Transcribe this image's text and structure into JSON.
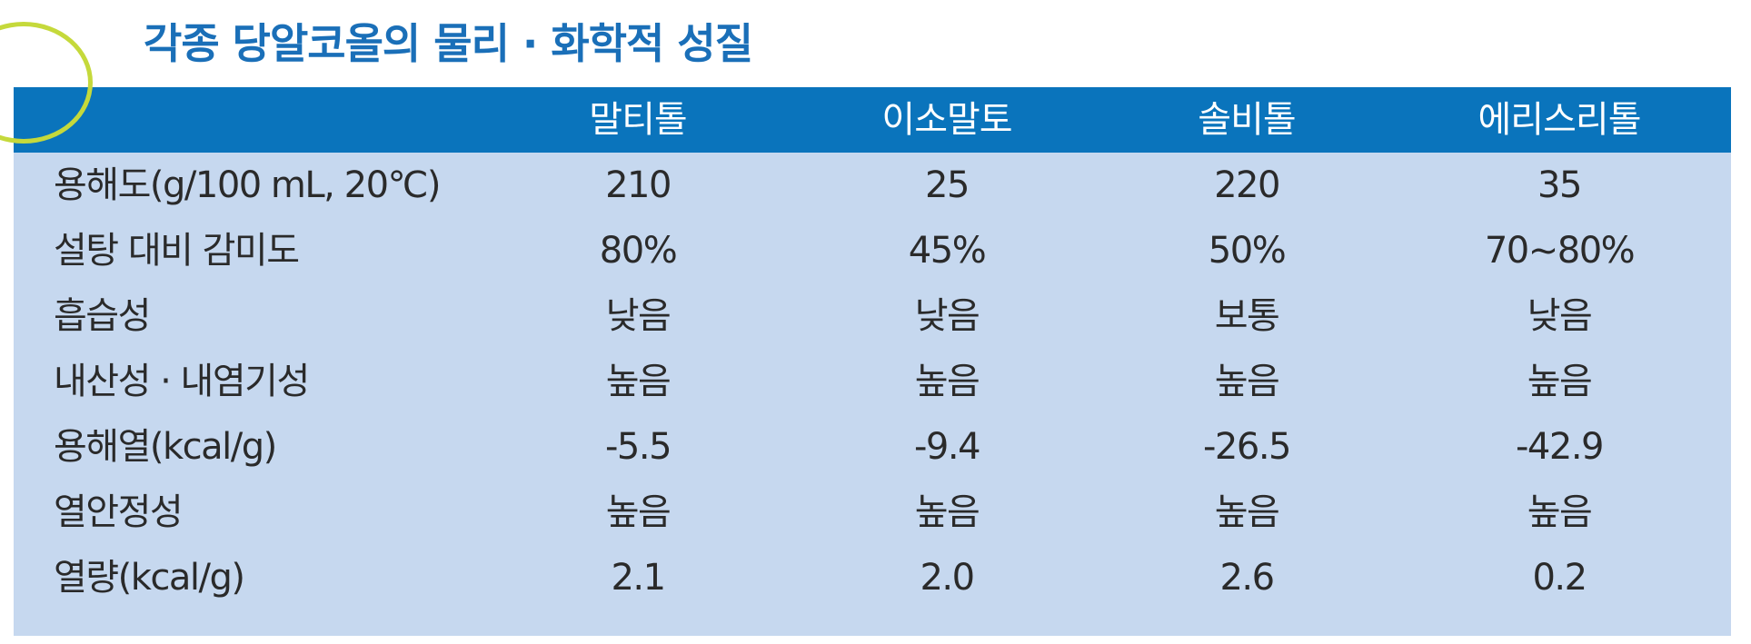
{
  "title": "각종 당알코올의 물리 · 화학적 성질",
  "table": {
    "columns": [
      "말티톨",
      "이소말토",
      "솔비톨",
      "에리스리톨"
    ],
    "rows": [
      {
        "label": "용해도(g/100 mL, 20℃)",
        "values": [
          "210",
          "25",
          "220",
          "35"
        ]
      },
      {
        "label": "설탕 대비 감미도",
        "values": [
          "80%",
          "45%",
          "50%",
          "70~80%"
        ]
      },
      {
        "label": "흡습성",
        "values": [
          "낮음",
          "낮음",
          "보통",
          "낮음"
        ]
      },
      {
        "label": "내산성 · 내염기성",
        "values": [
          "높음",
          "높음",
          "높음",
          "높음"
        ]
      },
      {
        "label": "용해열(kcal/g)",
        "values": [
          "-5.5",
          "-9.4",
          "-26.5",
          "-42.9"
        ]
      },
      {
        "label": "열안정성",
        "values": [
          "높음",
          "높음",
          "높음",
          "높음"
        ]
      },
      {
        "label": "열량(kcal/g)",
        "values": [
          "2.1",
          "2.0",
          "2.6",
          "0.2"
        ]
      }
    ]
  },
  "colors": {
    "title": "#1a6fb8",
    "header_band": "#0a74bc",
    "table_body": "#c6d8ef",
    "accent_circle": "#c5d93b",
    "header_text": "#ffffff",
    "body_text": "#2a2a2a"
  }
}
